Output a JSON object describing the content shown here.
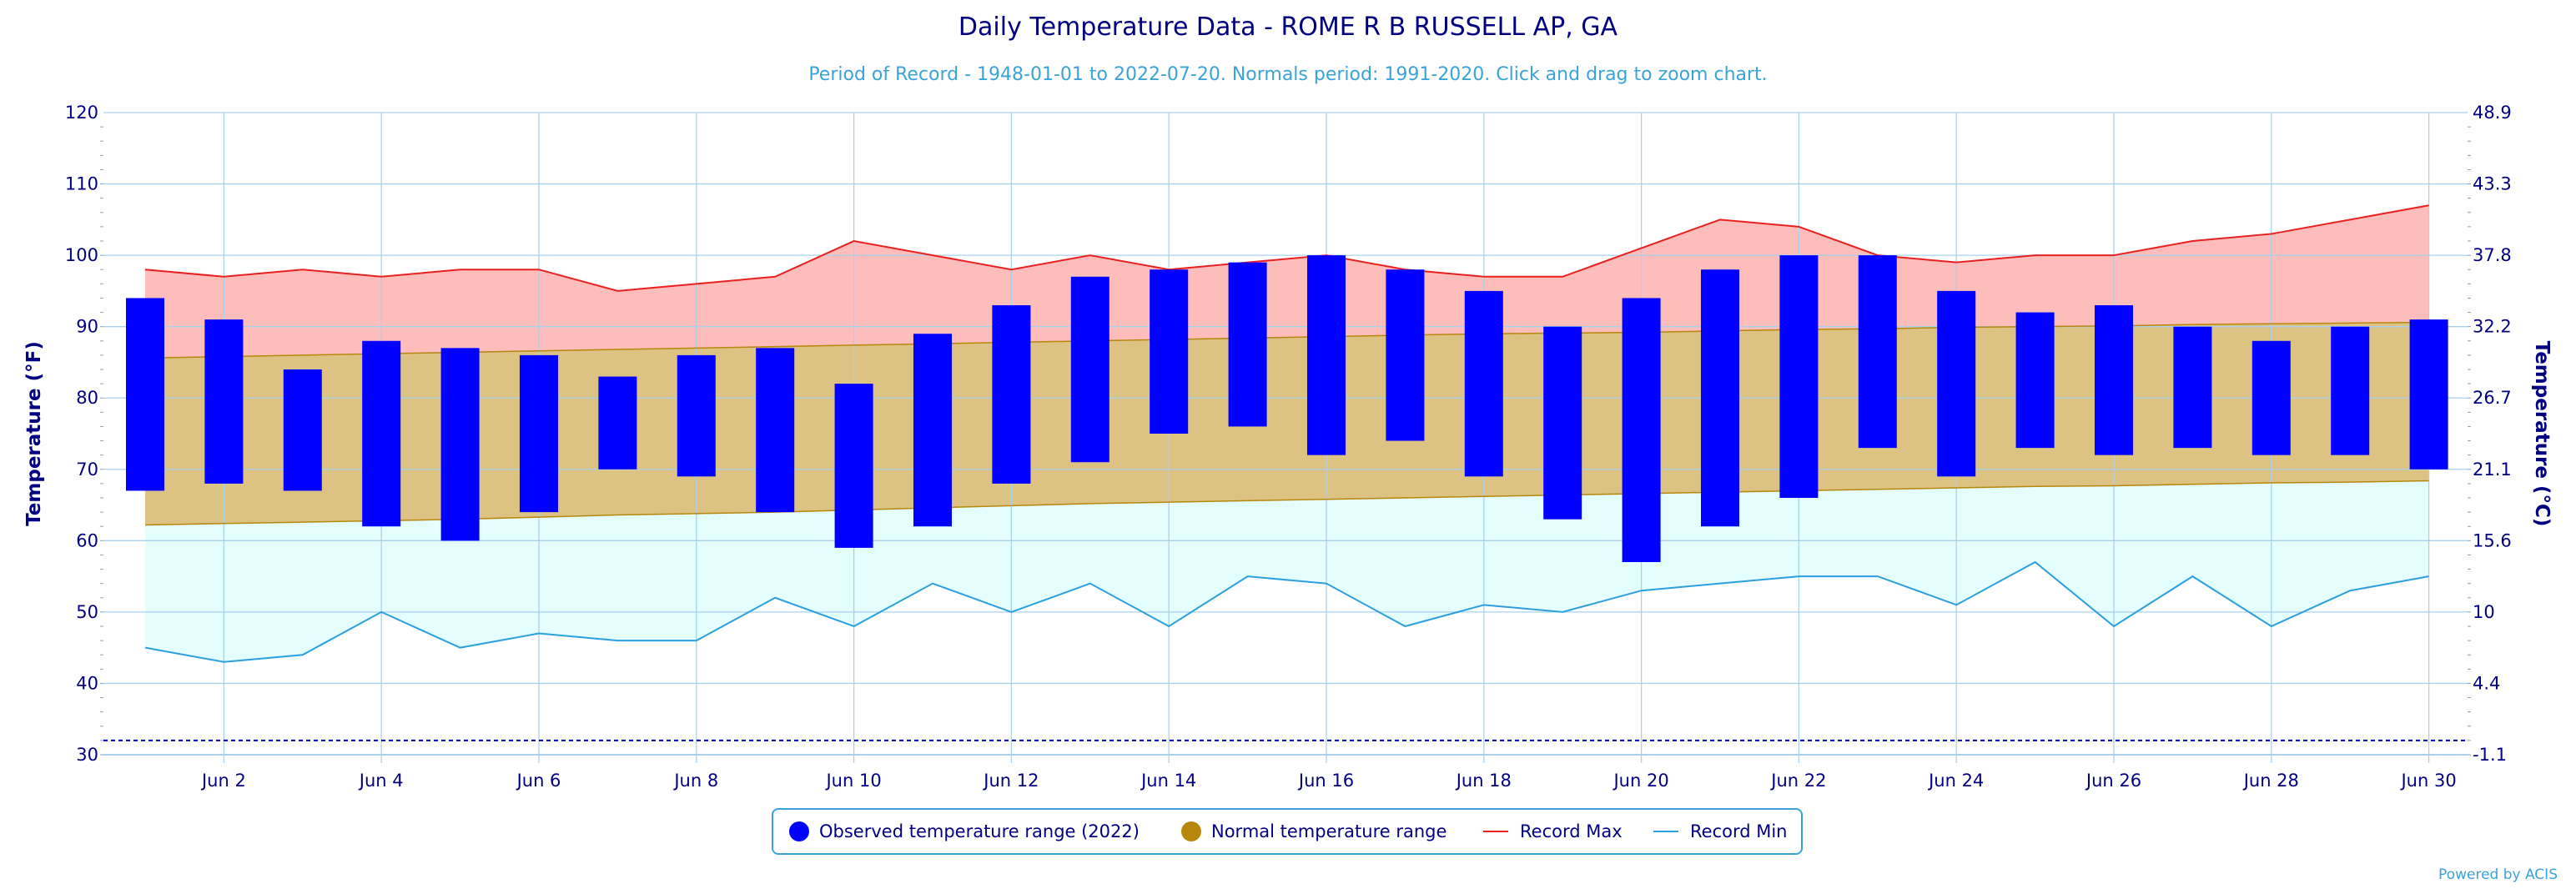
{
  "title": "Daily Temperature Data - ROME R B RUSSELL AP, GA",
  "subtitle": "Period of Record - 1948-01-01 to 2022-07-20. Normals period: 1991-2020. Click and drag to zoom chart.",
  "credit": "Powered by ACIS",
  "colors": {
    "observed": "#0000ff",
    "normal_fill": "#dcc384",
    "normal_marker": "#b8860b",
    "normal_line": "#b8860b",
    "record_max_line": "#e8211f",
    "record_max_fill": "#fdbdbb",
    "record_min_line": "#2ba0df",
    "record_min_fill": "#e4fdfd",
    "grid": "#a9d1ed",
    "text": "#000080"
  },
  "chart_data": {
    "type": "bar",
    "title": "Daily Temperature Data - ROME R B RUSSELL AP, GA",
    "subtitle": "Period of Record - 1948-01-01 to 2022-07-20. Normals period: 1991-2020. Click and drag to zoom chart.",
    "ylabel_left": "Temperature (°F)",
    "ylabel_right": "Temperature (°C)",
    "ylim": [
      30,
      120
    ],
    "y_ticks_left": [
      "30",
      "40",
      "50",
      "60",
      "70",
      "80",
      "90",
      "100",
      "110",
      "120"
    ],
    "y_ticks_right": [
      "-1.1",
      "4.4",
      "10",
      "15.6",
      "21.1",
      "26.7",
      "32.2",
      "37.8",
      "43.3",
      "48.9"
    ],
    "x_tick_labels": [
      "Jun 2",
      "Jun 4",
      "Jun 6",
      "Jun 8",
      "Jun 10",
      "Jun 12",
      "Jun 14",
      "Jun 16",
      "Jun 18",
      "Jun 20",
      "Jun 22",
      "Jun 24",
      "Jun 26",
      "Jun 28",
      "Jun 30"
    ],
    "x_tick_days": [
      2,
      4,
      6,
      8,
      10,
      12,
      14,
      16,
      18,
      20,
      22,
      24,
      26,
      28,
      30
    ],
    "days": [
      1,
      2,
      3,
      4,
      5,
      6,
      7,
      8,
      9,
      10,
      11,
      12,
      13,
      14,
      15,
      16,
      17,
      18,
      19,
      20,
      21,
      22,
      23,
      24,
      25,
      26,
      27,
      28,
      29,
      30
    ],
    "legend_position": "bottom-center",
    "grid": true,
    "reference_line_y": 32,
    "series": [
      {
        "name": "Observed temperature range (2022)",
        "low": [
          67,
          68,
          67,
          62,
          60,
          64,
          70,
          69,
          64,
          59,
          62,
          68,
          71,
          75,
          76,
          72,
          74,
          69,
          63,
          57,
          62,
          66,
          73,
          69,
          73,
          72,
          73,
          72,
          72,
          70
        ],
        "high": [
          94,
          91,
          84,
          88,
          87,
          86,
          83,
          86,
          87,
          82,
          89,
          93,
          97,
          98,
          99,
          100,
          98,
          95,
          90,
          94,
          98,
          100,
          100,
          95,
          92,
          93,
          90,
          88,
          90,
          91
        ]
      },
      {
        "name": "Normal temperature range",
        "low": [
          62.2,
          62.4,
          62.6,
          62.8,
          63.0,
          63.3,
          63.6,
          63.8,
          64.0,
          64.3,
          64.6,
          64.9,
          65.2,
          65.4,
          65.6,
          65.8,
          66.0,
          66.2,
          66.4,
          66.6,
          66.8,
          67.0,
          67.2,
          67.4,
          67.6,
          67.7,
          67.9,
          68.1,
          68.2,
          68.4
        ],
        "high": [
          85.6,
          85.8,
          86.0,
          86.2,
          86.4,
          86.6,
          86.8,
          87.0,
          87.2,
          87.4,
          87.6,
          87.8,
          88.0,
          88.2,
          88.4,
          88.6,
          88.8,
          89.0,
          89.1,
          89.2,
          89.4,
          89.6,
          89.7,
          89.9,
          90.0,
          90.1,
          90.3,
          90.4,
          90.5,
          90.6
        ]
      },
      {
        "name": "Record Max",
        "values": [
          98,
          97,
          98,
          97,
          98,
          98,
          95,
          96,
          97,
          102,
          100,
          98,
          100,
          98,
          99,
          100,
          98,
          97,
          97,
          101,
          105,
          104,
          100,
          99,
          100,
          100,
          102,
          103,
          105,
          107
        ]
      },
      {
        "name": "Record Min",
        "values": [
          45,
          43,
          44,
          50,
          45,
          47,
          46,
          46,
          52,
          48,
          54,
          50,
          54,
          48,
          55,
          54,
          48,
          51,
          50,
          53,
          54,
          55,
          55,
          51,
          57,
          48,
          55,
          48,
          53,
          55
        ]
      }
    ]
  }
}
